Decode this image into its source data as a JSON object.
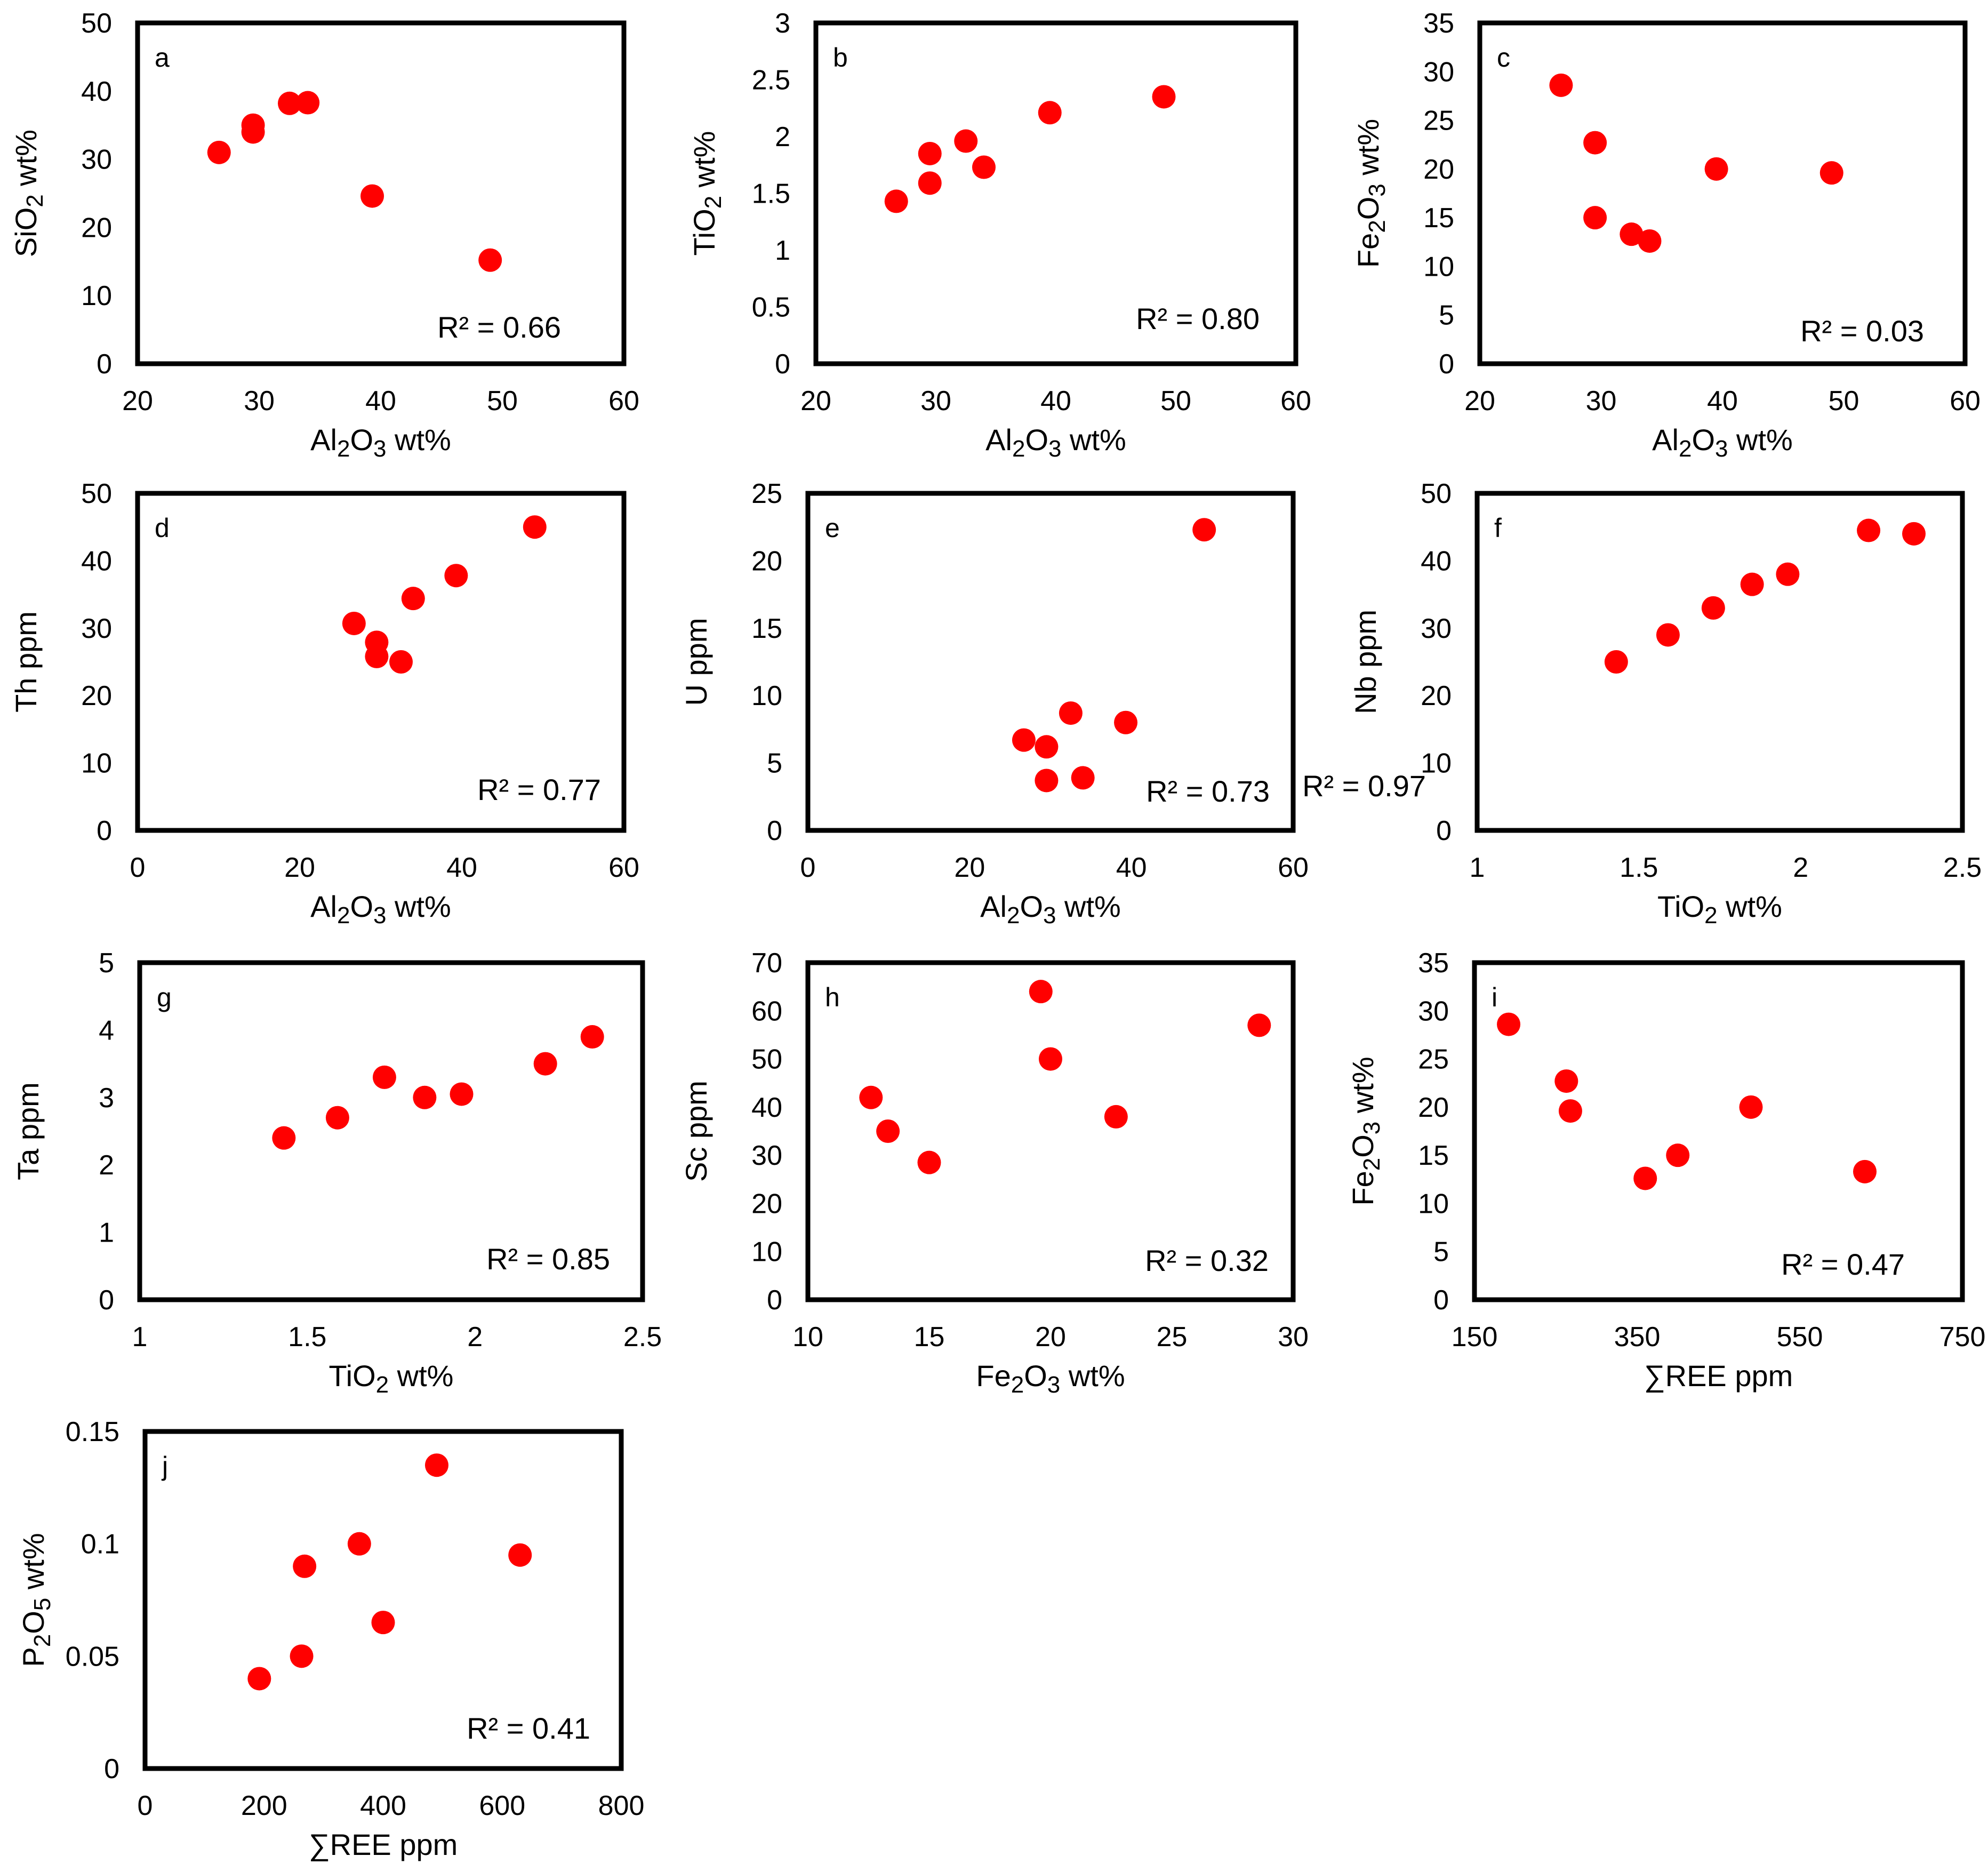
{
  "chart_data": [
    {
      "type": "scatter",
      "panel": "a",
      "xlabel": "Al2O3 wt%",
      "ylabel": "SiO2 wt%",
      "xlim": [
        20,
        60
      ],
      "ylim": [
        0,
        50
      ],
      "xticks": [
        20,
        30,
        40,
        50,
        60
      ],
      "yticks": [
        0,
        10,
        20,
        30,
        40,
        50
      ],
      "annotation": "R² = 0.66",
      "points": [
        {
          "x": 26.7,
          "y": 31
        },
        {
          "x": 29.5,
          "y": 35
        },
        {
          "x": 29.5,
          "y": 34
        },
        {
          "x": 32.5,
          "y": 38.2
        },
        {
          "x": 34,
          "y": 38.3
        },
        {
          "x": 39.3,
          "y": 24.6
        },
        {
          "x": 49,
          "y": 15.2
        }
      ]
    },
    {
      "type": "scatter",
      "panel": "b",
      "xlabel": "Al2O3 wt%",
      "ylabel": "TiO2 wt%",
      "xlim": [
        20,
        60
      ],
      "ylim": [
        0,
        3
      ],
      "xticks": [
        20,
        30,
        40,
        50,
        60
      ],
      "yticks": [
        0,
        0.5,
        1,
        1.5,
        2,
        2.5,
        3
      ],
      "annotation": "R² = 0.80",
      "points": [
        {
          "x": 26.7,
          "y": 1.43
        },
        {
          "x": 29.5,
          "y": 1.85
        },
        {
          "x": 29.5,
          "y": 1.59
        },
        {
          "x": 32.5,
          "y": 1.96
        },
        {
          "x": 34,
          "y": 1.73
        },
        {
          "x": 39.5,
          "y": 2.21
        },
        {
          "x": 49,
          "y": 2.35
        }
      ]
    },
    {
      "type": "scatter",
      "panel": "c",
      "xlabel": "Al2O3 wt%",
      "ylabel": "Fe2O3 wt%",
      "xlim": [
        20,
        60
      ],
      "ylim": [
        0,
        35
      ],
      "xticks": [
        20,
        30,
        40,
        50,
        60
      ],
      "yticks": [
        0,
        5,
        10,
        15,
        20,
        25,
        30,
        35
      ],
      "annotation": "R² = 0.03",
      "points": [
        {
          "x": 26.7,
          "y": 28.6
        },
        {
          "x": 29.5,
          "y": 22.7
        },
        {
          "x": 29.5,
          "y": 15
        },
        {
          "x": 32.5,
          "y": 13.3
        },
        {
          "x": 34,
          "y": 12.6
        },
        {
          "x": 39.5,
          "y": 20
        },
        {
          "x": 49,
          "y": 19.6
        }
      ]
    },
    {
      "type": "scatter",
      "panel": "d",
      "xlabel": "Al2O3 wt%",
      "ylabel": "Th ppm",
      "xlim": [
        0,
        60
      ],
      "ylim": [
        0,
        50
      ],
      "xticks": [
        0,
        20,
        40,
        60
      ],
      "yticks": [
        0,
        10,
        20,
        30,
        40,
        50
      ],
      "annotation": "R² = 0.77",
      "points": [
        {
          "x": 26.7,
          "y": 30.7
        },
        {
          "x": 29.5,
          "y": 27.9
        },
        {
          "x": 29.5,
          "y": 25.8
        },
        {
          "x": 32.5,
          "y": 25
        },
        {
          "x": 34,
          "y": 34.4
        },
        {
          "x": 39.3,
          "y": 37.8
        },
        {
          "x": 49,
          "y": 45
        }
      ]
    },
    {
      "type": "scatter",
      "panel": "e",
      "xlabel": "Al2O3 wt%",
      "ylabel": "U ppm",
      "xlim": [
        0,
        60
      ],
      "ylim": [
        0,
        25
      ],
      "xticks": [
        0,
        20,
        40,
        60
      ],
      "yticks": [
        0,
        5,
        10,
        15,
        20,
        25
      ],
      "annotation": "R² = 0.73",
      "points": [
        {
          "x": 26.7,
          "y": 6.7
        },
        {
          "x": 29.5,
          "y": 6.2
        },
        {
          "x": 29.5,
          "y": 3.7
        },
        {
          "x": 32.5,
          "y": 8.7
        },
        {
          "x": 34,
          "y": 3.9
        },
        {
          "x": 39.3,
          "y": 8
        },
        {
          "x": 49,
          "y": 22.3
        }
      ]
    },
    {
      "type": "scatter",
      "panel": "f",
      "xlabel": "TiO2 wt%",
      "ylabel": "Nb ppm",
      "xlim": [
        1,
        2.5
      ],
      "ylim": [
        0,
        50
      ],
      "xticks": [
        1,
        1.5,
        2,
        2.5
      ],
      "yticks": [
        0,
        10,
        20,
        30,
        40,
        50
      ],
      "annotation": "R² = 0.97",
      "points": [
        {
          "x": 1.43,
          "y": 25
        },
        {
          "x": 1.59,
          "y": 29
        },
        {
          "x": 1.73,
          "y": 33
        },
        {
          "x": 1.85,
          "y": 36.5
        },
        {
          "x": 1.96,
          "y": 38
        },
        {
          "x": 2.21,
          "y": 44.5
        },
        {
          "x": 2.35,
          "y": 44
        }
      ]
    },
    {
      "type": "scatter",
      "panel": "g",
      "xlabel": "TiO2 wt%",
      "ylabel": "Ta ppm",
      "xlim": [
        1,
        2.5
      ],
      "ylim": [
        0,
        5
      ],
      "xticks": [
        1,
        1.5,
        2,
        2.5
      ],
      "yticks": [
        0,
        1,
        2,
        3,
        4,
        5
      ],
      "annotation": "R² = 0.85",
      "points": [
        {
          "x": 1.43,
          "y": 2.4
        },
        {
          "x": 1.59,
          "y": 2.7
        },
        {
          "x": 1.73,
          "y": 3.3
        },
        {
          "x": 1.85,
          "y": 3
        },
        {
          "x": 1.96,
          "y": 3.05
        },
        {
          "x": 2.21,
          "y": 3.5
        },
        {
          "x": 2.35,
          "y": 3.9
        }
      ]
    },
    {
      "type": "scatter",
      "panel": "h",
      "xlabel": "Fe2O3 wt%",
      "ylabel": "Sc ppm",
      "xlim": [
        10,
        30
      ],
      "ylim": [
        0,
        70
      ],
      "xticks": [
        10,
        15,
        20,
        25,
        30
      ],
      "yticks": [
        0,
        10,
        20,
        30,
        40,
        50,
        60,
        70
      ],
      "annotation": "R² = 0.32",
      "points": [
        {
          "x": 12.6,
          "y": 42
        },
        {
          "x": 13.3,
          "y": 35
        },
        {
          "x": 15,
          "y": 28.5
        },
        {
          "x": 19.6,
          "y": 64
        },
        {
          "x": 20,
          "y": 50
        },
        {
          "x": 22.7,
          "y": 38
        },
        {
          "x": 28.6,
          "y": 57
        }
      ]
    },
    {
      "type": "scatter",
      "panel": "i",
      "xlabel": "∑REE ppm",
      "ylabel": "Fe2O3 wt%",
      "xlim": [
        150,
        750
      ],
      "ylim": [
        0,
        35
      ],
      "xticks": [
        150,
        350,
        550,
        750
      ],
      "yticks": [
        0,
        5,
        10,
        15,
        20,
        25,
        30,
        35
      ],
      "annotation": "R² = 0.47",
      "points": [
        {
          "x": 192,
          "y": 28.6
        },
        {
          "x": 263,
          "y": 22.7
        },
        {
          "x": 268,
          "y": 19.6
        },
        {
          "x": 360,
          "y": 12.6
        },
        {
          "x": 400,
          "y": 15
        },
        {
          "x": 490,
          "y": 20
        },
        {
          "x": 630,
          "y": 13.3
        }
      ]
    },
    {
      "type": "scatter",
      "panel": "j",
      "xlabel": "∑REE ppm",
      "ylabel": "P2O5 wt%",
      "xlim": [
        0,
        800
      ],
      "ylim": [
        0,
        0.15
      ],
      "xticks": [
        0,
        200,
        400,
        600,
        800
      ],
      "yticks": [
        0,
        0.05,
        0.1,
        0.15
      ],
      "annotation": "R² = 0.41",
      "points": [
        {
          "x": 192,
          "y": 0.04
        },
        {
          "x": 263,
          "y": 0.05
        },
        {
          "x": 268,
          "y": 0.09
        },
        {
          "x": 360,
          "y": 0.1
        },
        {
          "x": 400,
          "y": 0.065
        },
        {
          "x": 490,
          "y": 0.135
        },
        {
          "x": 630,
          "y": 0.095
        }
      ]
    }
  ],
  "colors": {
    "marker": "#ff0000",
    "axis": "#000000"
  }
}
